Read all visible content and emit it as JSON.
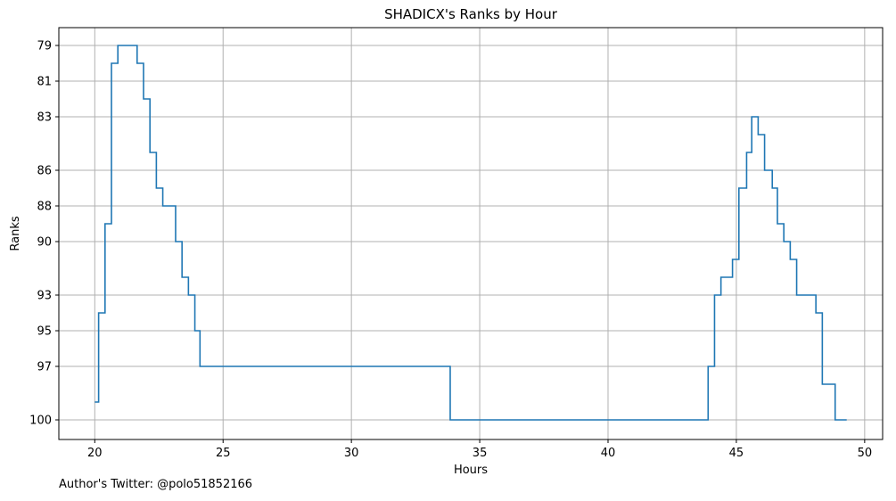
{
  "chart_data": {
    "type": "line",
    "step": true,
    "title": "SHADICX's Ranks by Hour",
    "xlabel": "Hours",
    "ylabel": "Ranks",
    "xlim": [
      18.6,
      50.7
    ],
    "ylim": [
      101.1,
      78.0
    ],
    "y_inverted": true,
    "x_ticks": [
      20,
      25,
      30,
      35,
      40,
      45,
      50
    ],
    "y_ticks": [
      79,
      81,
      83,
      86,
      88,
      90,
      93,
      95,
      97,
      100
    ],
    "grid": true,
    "line_color": "#1f77b4",
    "points": [
      [
        20.0,
        99.0
      ],
      [
        20.15,
        94.0
      ],
      [
        20.4,
        89.0
      ],
      [
        20.65,
        80.0
      ],
      [
        20.9,
        79.0
      ],
      [
        21.65,
        80.0
      ],
      [
        21.9,
        82.0
      ],
      [
        22.15,
        85.0
      ],
      [
        22.4,
        87.0
      ],
      [
        22.65,
        88.0
      ],
      [
        23.15,
        90.0
      ],
      [
        23.4,
        92.0
      ],
      [
        23.65,
        93.0
      ],
      [
        23.9,
        95.0
      ],
      [
        24.1,
        97.0
      ],
      [
        33.85,
        100.0
      ],
      [
        43.9,
        97.0
      ],
      [
        44.15,
        93.0
      ],
      [
        44.4,
        92.0
      ],
      [
        44.85,
        91.0
      ],
      [
        45.1,
        87.0
      ],
      [
        45.4,
        85.0
      ],
      [
        45.6,
        83.0
      ],
      [
        45.85,
        84.0
      ],
      [
        46.1,
        86.0
      ],
      [
        46.4,
        87.0
      ],
      [
        46.6,
        89.0
      ],
      [
        46.85,
        90.0
      ],
      [
        47.1,
        91.0
      ],
      [
        47.35,
        93.0
      ],
      [
        48.1,
        94.0
      ],
      [
        48.35,
        98.0
      ],
      [
        48.85,
        100.0
      ],
      [
        49.3,
        100.0
      ]
    ]
  },
  "footer": {
    "text": "Author's Twitter: @polo51852166"
  }
}
